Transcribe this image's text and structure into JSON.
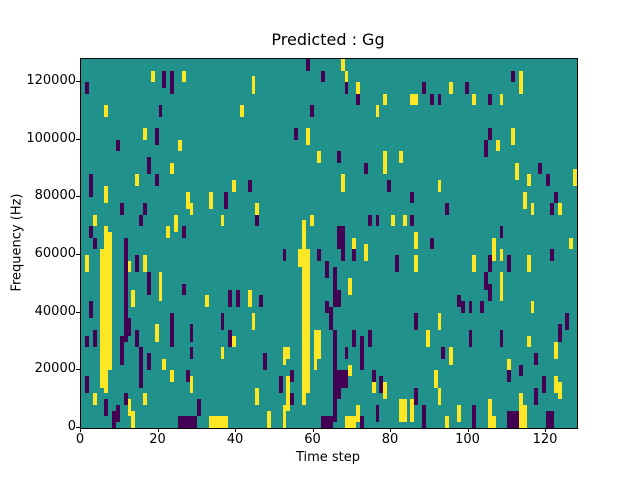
{
  "figure": {
    "title": "Predicted : Gg",
    "xlabel": "Time step",
    "ylabel": "Frequency (Hz)"
  },
  "chart_data": {
    "type": "heatmap",
    "title": "Predicted : Gg",
    "xlabel": "Time step",
    "ylabel": "Frequency (Hz)",
    "x_range": [
      0,
      128
    ],
    "y_range": [
      0,
      128000
    ],
    "grid_size": [
      128,
      64
    ],
    "xticks": [
      0,
      20,
      40,
      60,
      80,
      100,
      120
    ],
    "yticks": [
      0,
      20000,
      40000,
      60000,
      80000,
      100000,
      120000
    ],
    "colormap": "viridis",
    "colors": {
      "background": "#21918c",
      "Y": "#fde725",
      "P": "#440154"
    },
    "legend": null,
    "grid": false,
    "cells_format": "[time_step, bin_start, bin_end, color, optional_width] bins from bottom, 2000 Hz per bin",
    "cells": [
      [
        1,
        58,
        59,
        "P"
      ],
      [
        6,
        54,
        55,
        "Y"
      ],
      [
        18,
        60,
        61,
        "Y"
      ],
      [
        21,
        59,
        61,
        "P"
      ],
      [
        23,
        58,
        61,
        "P"
      ],
      [
        26,
        60,
        61,
        "Y"
      ],
      [
        20,
        54,
        55,
        "P"
      ],
      [
        41,
        54,
        55,
        "Y"
      ],
      [
        16,
        50,
        51,
        "Y"
      ],
      [
        19,
        49,
        51,
        "P"
      ],
      [
        9,
        48,
        49,
        "P"
      ],
      [
        25,
        48,
        49,
        "Y"
      ],
      [
        17,
        44,
        46,
        "P"
      ],
      [
        23,
        44,
        45,
        "Y"
      ],
      [
        14,
        42,
        43,
        "Y"
      ],
      [
        19,
        42,
        43,
        "P"
      ],
      [
        2,
        43,
        43,
        "P"
      ],
      [
        58,
        62,
        63,
        "P"
      ],
      [
        67,
        62,
        63,
        "Y"
      ],
      [
        62,
        60,
        61,
        "P"
      ],
      [
        68,
        60,
        61,
        "Y"
      ],
      [
        44,
        58,
        60,
        "Y"
      ],
      [
        68,
        58,
        59,
        "P"
      ],
      [
        71,
        58,
        59,
        "Y"
      ],
      [
        71,
        56,
        57,
        "P"
      ],
      [
        78,
        56,
        57,
        "Y"
      ],
      [
        76,
        54,
        55,
        "Y"
      ],
      [
        85,
        56,
        57,
        "Y"
      ],
      [
        59,
        54,
        55,
        "P"
      ],
      [
        55,
        50,
        51,
        "P"
      ],
      [
        58,
        49,
        51,
        "Y"
      ],
      [
        61,
        46,
        47,
        "Y"
      ],
      [
        66,
        46,
        47,
        "P"
      ],
      [
        73,
        44,
        45,
        "P"
      ],
      [
        78,
        44,
        47,
        "Y"
      ],
      [
        82,
        46,
        47,
        "Y"
      ],
      [
        67,
        43,
        43,
        "Y"
      ],
      [
        111,
        60,
        61,
        "P"
      ],
      [
        113,
        58,
        61,
        "Y"
      ],
      [
        88,
        58,
        59,
        "P"
      ],
      [
        95,
        58,
        59,
        "Y"
      ],
      [
        99,
        58,
        59,
        "P"
      ],
      [
        90,
        56,
        57,
        "P"
      ],
      [
        92,
        56,
        57,
        "P"
      ],
      [
        86,
        56,
        57,
        "Y"
      ],
      [
        101,
        56,
        57,
        "Y"
      ],
      [
        105,
        56,
        57,
        "P"
      ],
      [
        108,
        56,
        57,
        "Y"
      ],
      [
        105,
        50,
        51,
        "P"
      ],
      [
        107,
        48,
        49,
        "Y"
      ],
      [
        111,
        49,
        51,
        "Y"
      ],
      [
        104,
        47,
        49,
        "P"
      ],
      [
        112,
        43,
        45,
        "Y"
      ],
      [
        118,
        44,
        45,
        "P"
      ],
      [
        115,
        42,
        43,
        "Y"
      ],
      [
        120,
        42,
        43,
        "P"
      ],
      [
        127,
        42,
        44,
        "Y"
      ],
      [
        2,
        40,
        42,
        "P"
      ],
      [
        6,
        39,
        41,
        "Y"
      ],
      [
        10,
        37,
        38,
        "P"
      ],
      [
        16,
        37,
        38,
        "P"
      ],
      [
        15,
        35,
        36,
        "P"
      ],
      [
        3,
        35,
        36,
        "Y"
      ],
      [
        2,
        33,
        34,
        "P"
      ],
      [
        3,
        31,
        32,
        "P"
      ],
      [
        1,
        27,
        29,
        "Y"
      ],
      [
        12,
        27,
        28,
        "Y"
      ],
      [
        14,
        27,
        29,
        "P"
      ],
      [
        16,
        27,
        29,
        "Y"
      ],
      [
        17,
        23,
        26,
        "P"
      ],
      [
        20,
        22,
        26,
        "Y"
      ],
      [
        26,
        23,
        24,
        "P"
      ],
      [
        22,
        33,
        34,
        "Y"
      ],
      [
        24,
        34,
        36,
        "Y"
      ],
      [
        26,
        33,
        34,
        "P"
      ],
      [
        27,
        38,
        40,
        "Y"
      ],
      [
        28,
        37,
        38,
        "Y"
      ],
      [
        33,
        38,
        40,
        "Y"
      ],
      [
        37,
        38,
        40,
        "P"
      ],
      [
        39,
        41,
        42,
        "Y"
      ],
      [
        36,
        35,
        36,
        "Y"
      ],
      [
        32,
        21,
        22,
        "Y"
      ],
      [
        38,
        21,
        23,
        "P"
      ],
      [
        40,
        21,
        23,
        "P"
      ],
      [
        13,
        21,
        23,
        "Y"
      ],
      [
        11,
        21,
        22,
        "P"
      ],
      [
        5,
        7,
        30,
        "Y"
      ],
      [
        6,
        6,
        34,
        "Y"
      ],
      [
        7,
        10,
        33,
        "Y"
      ],
      [
        11,
        15,
        32,
        "P"
      ],
      [
        12,
        16,
        18,
        "P"
      ],
      [
        15,
        7,
        13,
        "P"
      ],
      [
        43,
        41,
        42,
        "P"
      ],
      [
        67,
        41,
        42,
        "Y"
      ],
      [
        79,
        41,
        42,
        "P"
      ],
      [
        85,
        39,
        40,
        "P"
      ],
      [
        45,
        37,
        38,
        "Y"
      ],
      [
        45,
        35,
        36,
        "P"
      ],
      [
        74,
        35,
        36,
        "P"
      ],
      [
        76,
        35,
        36,
        "P"
      ],
      [
        80,
        35,
        36,
        "Y"
      ],
      [
        83,
        35,
        36,
        "Y"
      ],
      [
        85,
        35,
        36,
        "P"
      ],
      [
        66,
        31,
        34,
        "P"
      ],
      [
        67,
        29,
        34,
        "P"
      ],
      [
        70,
        31,
        32,
        "Y"
      ],
      [
        52,
        29,
        30,
        "P"
      ],
      [
        61,
        29,
        30,
        "P"
      ],
      [
        70,
        29,
        30,
        "P"
      ],
      [
        73,
        29,
        31,
        "Y"
      ],
      [
        81,
        27,
        29,
        "P"
      ],
      [
        63,
        26,
        28,
        "P"
      ],
      [
        69,
        23,
        25,
        "Y"
      ],
      [
        43,
        21,
        23,
        "Y"
      ],
      [
        46,
        21,
        22,
        "P"
      ],
      [
        56,
        28,
        30,
        "Y"
      ],
      [
        59,
        35,
        36,
        "Y"
      ],
      [
        57,
        4,
        35,
        "Y"
      ],
      [
        58,
        6,
        30,
        "Y"
      ],
      [
        60,
        10,
        16,
        "Y"
      ],
      [
        61,
        12,
        16,
        "Y"
      ],
      [
        65,
        1,
        16,
        "P"
      ],
      [
        65,
        21,
        27,
        "P"
      ],
      [
        66,
        5,
        9,
        "P"
      ],
      [
        66,
        21,
        23,
        "P"
      ],
      [
        92,
        41,
        42,
        "Y"
      ],
      [
        114,
        38,
        40,
        "Y"
      ],
      [
        122,
        39,
        40,
        "P"
      ],
      [
        94,
        37,
        38,
        "P"
      ],
      [
        116,
        37,
        38,
        "Y"
      ],
      [
        121,
        37,
        38,
        "P"
      ],
      [
        123,
        37,
        38,
        "Y"
      ],
      [
        86,
        31,
        33,
        "Y"
      ],
      [
        90,
        31,
        32,
        "P"
      ],
      [
        108,
        33,
        34,
        "P"
      ],
      [
        106,
        29,
        32,
        "Y"
      ],
      [
        108,
        29,
        30,
        "Y"
      ],
      [
        121,
        29,
        30,
        "P"
      ],
      [
        126,
        31,
        32,
        "Y"
      ],
      [
        86,
        27,
        29,
        "Y"
      ],
      [
        101,
        27,
        29,
        "Y"
      ],
      [
        105,
        27,
        29,
        "P"
      ],
      [
        110,
        27,
        29,
        "P"
      ],
      [
        115,
        27,
        29,
        "Y"
      ],
      [
        104,
        24,
        26,
        "P"
      ],
      [
        108,
        22,
        26,
        "Y"
      ],
      [
        105,
        22,
        24,
        "P"
      ],
      [
        97,
        21,
        22,
        "P"
      ],
      [
        2,
        19,
        21,
        "P"
      ],
      [
        3,
        14,
        16,
        "P"
      ],
      [
        1,
        14,
        15,
        "P"
      ],
      [
        10,
        11,
        15,
        "P"
      ],
      [
        14,
        14,
        16,
        "P"
      ],
      [
        19,
        15,
        17,
        "Y"
      ],
      [
        23,
        17,
        19,
        "P"
      ],
      [
        23,
        14,
        16,
        "P"
      ],
      [
        21,
        10,
        11,
        "Y"
      ],
      [
        17,
        10,
        12,
        "P"
      ],
      [
        23,
        8,
        9,
        "Y"
      ],
      [
        28,
        15,
        17,
        "P"
      ],
      [
        28,
        12,
        13,
        "P"
      ],
      [
        27,
        8,
        9,
        "P"
      ],
      [
        28,
        6,
        8,
        "Y"
      ],
      [
        36,
        17,
        19,
        "P"
      ],
      [
        38,
        14,
        16,
        "P"
      ],
      [
        39,
        14,
        15,
        "Y"
      ],
      [
        36,
        12,
        13,
        "Y"
      ],
      [
        1,
        6,
        8,
        "P"
      ],
      [
        3,
        4,
        5,
        "Y"
      ],
      [
        6,
        2,
        4,
        "P"
      ],
      [
        8,
        0,
        2,
        "P"
      ],
      [
        9,
        1,
        3,
        "P"
      ],
      [
        12,
        2,
        4,
        "Y"
      ],
      [
        13,
        0,
        2,
        "Y"
      ],
      [
        11,
        4,
        5,
        "P"
      ],
      [
        16,
        4,
        5,
        "Y"
      ],
      [
        30,
        2,
        4,
        "P"
      ],
      [
        25,
        0,
        1,
        "P",
        5
      ],
      [
        33,
        0,
        1,
        "Y",
        5
      ],
      [
        44,
        17,
        19,
        "Y"
      ],
      [
        63,
        20,
        21,
        "P"
      ],
      [
        64,
        17,
        20,
        "P"
      ],
      [
        70,
        14,
        16,
        "P"
      ],
      [
        74,
        14,
        16,
        "P"
      ],
      [
        72,
        10,
        15,
        "P"
      ],
      [
        68,
        12,
        13,
        "P"
      ],
      [
        53,
        12,
        13,
        "Y"
      ],
      [
        47,
        10,
        12,
        "P"
      ],
      [
        52,
        11,
        13,
        "Y"
      ],
      [
        54,
        8,
        9,
        "P"
      ],
      [
        53,
        6,
        8,
        "Y"
      ],
      [
        51,
        6,
        8,
        "P"
      ],
      [
        67,
        7,
        9,
        "P"
      ],
      [
        68,
        7,
        9,
        "P"
      ],
      [
        69,
        9,
        10,
        "Y"
      ],
      [
        75,
        8,
        9,
        "P"
      ],
      [
        75,
        6,
        7,
        "Y"
      ],
      [
        77,
        6,
        8,
        "P"
      ],
      [
        78,
        5,
        7,
        "Y"
      ],
      [
        45,
        4,
        6,
        "Y"
      ],
      [
        53,
        3,
        5,
        "Y"
      ],
      [
        54,
        4,
        5,
        "P"
      ],
      [
        48,
        0,
        2,
        "Y"
      ],
      [
        52,
        0,
        3,
        "Y"
      ],
      [
        62,
        0,
        1,
        "P",
        3
      ],
      [
        68,
        0,
        1,
        "Y",
        3
      ],
      [
        71,
        1,
        3,
        "Y"
      ],
      [
        72,
        0,
        1,
        "P"
      ],
      [
        76,
        1,
        3,
        "P"
      ],
      [
        82,
        1,
        4,
        "Y",
        2
      ],
      [
        85,
        1,
        4,
        "Y"
      ],
      [
        98,
        20,
        21,
        "P"
      ],
      [
        100,
        20,
        21,
        "P"
      ],
      [
        103,
        20,
        21,
        "P"
      ],
      [
        116,
        20,
        21,
        "Y"
      ],
      [
        86,
        17,
        19,
        "P"
      ],
      [
        92,
        17,
        19,
        "Y"
      ],
      [
        125,
        17,
        19,
        "P"
      ],
      [
        123,
        15,
        17,
        "P"
      ],
      [
        89,
        14,
        16,
        "Y"
      ],
      [
        100,
        14,
        16,
        "P"
      ],
      [
        108,
        14,
        16,
        "P"
      ],
      [
        115,
        14,
        15,
        "Y"
      ],
      [
        93,
        12,
        13,
        "P"
      ],
      [
        95,
        11,
        13,
        "Y"
      ],
      [
        122,
        12,
        14,
        "Y"
      ],
      [
        117,
        11,
        12,
        "P"
      ],
      [
        110,
        9,
        11,
        "Y"
      ],
      [
        113,
        9,
        10,
        "P"
      ],
      [
        110,
        8,
        9,
        "P"
      ],
      [
        91,
        7,
        9,
        "Y"
      ],
      [
        119,
        6,
        8,
        "P"
      ],
      [
        122,
        6,
        8,
        "Y"
      ],
      [
        86,
        4,
        6,
        "P"
      ],
      [
        92,
        4,
        6,
        "Y"
      ],
      [
        117,
        4,
        6,
        "P"
      ],
      [
        113,
        3,
        5,
        "Y"
      ],
      [
        123,
        5,
        7,
        "Y"
      ],
      [
        88,
        0,
        3,
        "P"
      ],
      [
        97,
        1,
        3,
        "Y"
      ],
      [
        101,
        0,
        3,
        "P"
      ],
      [
        105,
        2,
        4,
        "Y"
      ],
      [
        105,
        0,
        1,
        "Y",
        2
      ],
      [
        110,
        0,
        2,
        "P",
        3
      ],
      [
        113,
        0,
        3,
        "Y",
        2
      ],
      [
        120,
        0,
        2,
        "P",
        2
      ],
      [
        94,
        0,
        1,
        "Y"
      ]
    ]
  }
}
